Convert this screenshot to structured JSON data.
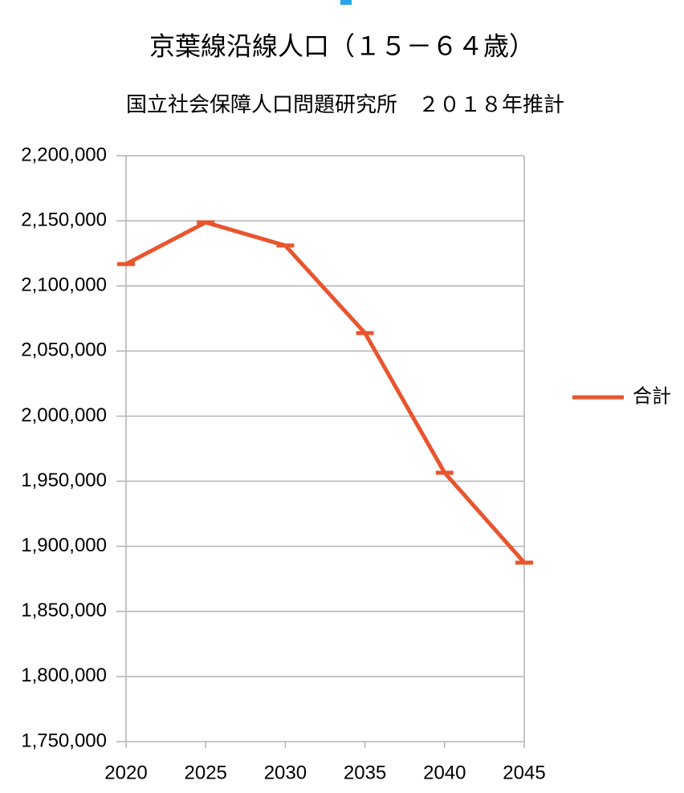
{
  "chart_data": {
    "type": "line",
    "title": "京葉線沿線人口（１５－６４歳）",
    "subtitle": "国立社会保障人口問題研究所　２０１８年推計",
    "categories": [
      "2020",
      "2025",
      "2030",
      "2035",
      "2040",
      "2045"
    ],
    "series": [
      {
        "name": "合計",
        "color": "#e8552f",
        "values": [
          2116800,
          2148800,
          2131000,
          2063800,
          1956500,
          1887500
        ]
      }
    ],
    "ylim": [
      1750000,
      2200000
    ],
    "yticks": [
      {
        "value": 1750000,
        "label": "1,750,000"
      },
      {
        "value": 1800000,
        "label": "1,800,000"
      },
      {
        "value": 1850000,
        "label": "1,850,000"
      },
      {
        "value": 1900000,
        "label": "1,900,000"
      },
      {
        "value": 1950000,
        "label": "1,950,000"
      },
      {
        "value": 2000000,
        "label": "2,000,000"
      },
      {
        "value": 2050000,
        "label": "2,050,000"
      },
      {
        "value": 2100000,
        "label": "2,100,000"
      },
      {
        "value": 2150000,
        "label": "2,150,000"
      },
      {
        "value": 2200000,
        "label": "2,200,000"
      }
    ],
    "grid": true,
    "legend": "right"
  }
}
